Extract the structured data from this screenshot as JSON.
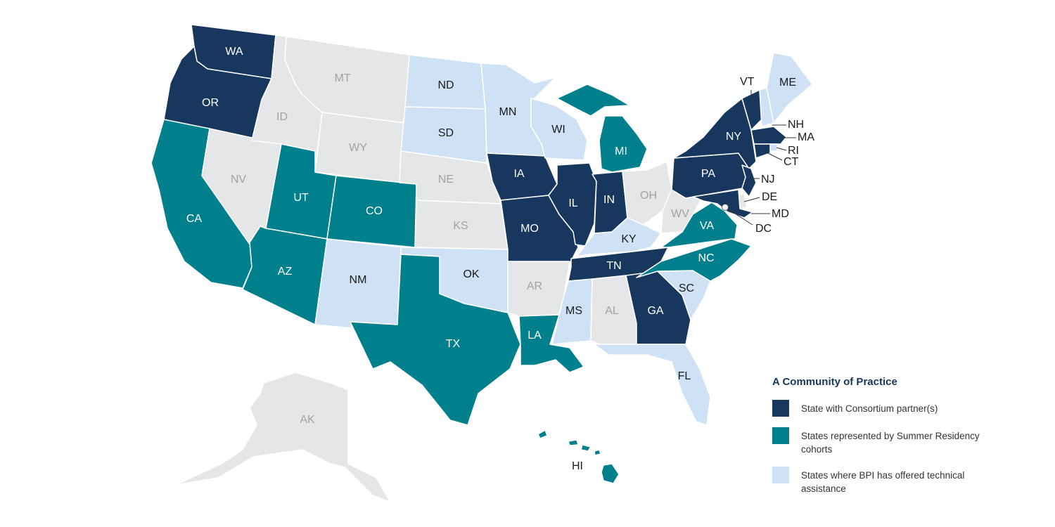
{
  "colors": {
    "consortium": "#17375e",
    "summer": "#00808c",
    "ta": "#cfe2f5",
    "none": "#e5e6e7"
  },
  "legend": {
    "title": "A Community of Practice",
    "items": [
      {
        "key": "consortium",
        "label": "State with Consortium partner(s)"
      },
      {
        "key": "summer",
        "label": "States represented by Summer Residency cohorts"
      },
      {
        "key": "ta",
        "label": "States where BPI has offered technical assistance"
      }
    ]
  },
  "states": [
    {
      "code": "WA",
      "cat": "consortium"
    },
    {
      "code": "OR",
      "cat": "consortium"
    },
    {
      "code": "CA",
      "cat": "summer"
    },
    {
      "code": "NV",
      "cat": "none"
    },
    {
      "code": "ID",
      "cat": "none"
    },
    {
      "code": "MT",
      "cat": "none"
    },
    {
      "code": "WY",
      "cat": "none"
    },
    {
      "code": "UT",
      "cat": "summer"
    },
    {
      "code": "CO",
      "cat": "summer"
    },
    {
      "code": "AZ",
      "cat": "summer"
    },
    {
      "code": "NM",
      "cat": "ta"
    },
    {
      "code": "ND",
      "cat": "ta"
    },
    {
      "code": "SD",
      "cat": "ta"
    },
    {
      "code": "NE",
      "cat": "none"
    },
    {
      "code": "KS",
      "cat": "none"
    },
    {
      "code": "OK",
      "cat": "ta"
    },
    {
      "code": "TX",
      "cat": "summer"
    },
    {
      "code": "MN",
      "cat": "ta"
    },
    {
      "code": "IA",
      "cat": "consortium"
    },
    {
      "code": "MO",
      "cat": "consortium"
    },
    {
      "code": "AR",
      "cat": "none"
    },
    {
      "code": "LA",
      "cat": "summer"
    },
    {
      "code": "WI",
      "cat": "ta"
    },
    {
      "code": "IL",
      "cat": "consortium"
    },
    {
      "code": "MI",
      "cat": "summer"
    },
    {
      "code": "IN",
      "cat": "consortium"
    },
    {
      "code": "OH",
      "cat": "none"
    },
    {
      "code": "KY",
      "cat": "ta"
    },
    {
      "code": "TN",
      "cat": "consortium"
    },
    {
      "code": "MS",
      "cat": "ta"
    },
    {
      "code": "AL",
      "cat": "none"
    },
    {
      "code": "GA",
      "cat": "consortium"
    },
    {
      "code": "FL",
      "cat": "ta"
    },
    {
      "code": "SC",
      "cat": "ta"
    },
    {
      "code": "NC",
      "cat": "summer"
    },
    {
      "code": "VA",
      "cat": "summer"
    },
    {
      "code": "WV",
      "cat": "none"
    },
    {
      "code": "PA",
      "cat": "consortium"
    },
    {
      "code": "NY",
      "cat": "consortium"
    },
    {
      "code": "VT",
      "cat": "consortium"
    },
    {
      "code": "NH",
      "cat": "ta"
    },
    {
      "code": "ME",
      "cat": "ta"
    },
    {
      "code": "MA",
      "cat": "consortium"
    },
    {
      "code": "RI",
      "cat": "ta"
    },
    {
      "code": "CT",
      "cat": "consortium"
    },
    {
      "code": "NJ",
      "cat": "consortium"
    },
    {
      "code": "DE",
      "cat": "none"
    },
    {
      "code": "MD",
      "cat": "consortium"
    },
    {
      "code": "DC",
      "cat": "none"
    },
    {
      "code": "AK",
      "cat": "none"
    },
    {
      "code": "HI",
      "cat": "summer"
    }
  ]
}
